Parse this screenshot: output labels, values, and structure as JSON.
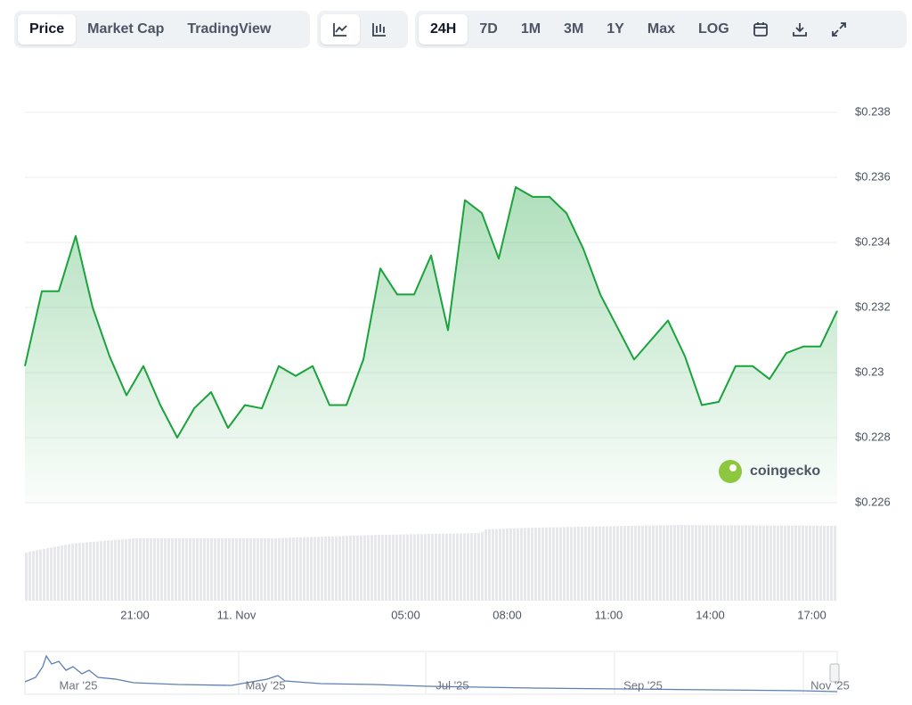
{
  "toolbar": {
    "views": [
      "Price",
      "Market Cap",
      "TradingView"
    ],
    "ranges": [
      "24H",
      "7D",
      "1M",
      "3M",
      "1Y",
      "Max",
      "LOG"
    ]
  },
  "chart_data": {
    "type": "line",
    "color": "#1aa33c",
    "grid": true,
    "x": [
      0,
      0.5,
      1,
      1.5,
      2,
      2.5,
      3,
      3.5,
      4,
      4.5,
      5,
      5.5,
      6,
      6.5,
      7,
      7.5,
      8,
      8.5,
      9,
      9.5,
      10,
      10.5,
      11,
      11.5,
      12,
      12.5,
      13,
      13.5,
      14,
      14.5,
      15,
      15.5,
      16,
      16.5,
      17,
      17.5,
      18,
      18.5,
      19,
      19.5,
      20,
      20.5,
      21,
      21.5,
      22,
      22.5,
      23,
      23.5,
      24
    ],
    "values": [
      0.2302,
      0.2325,
      0.2325,
      0.2342,
      0.232,
      0.2305,
      0.2293,
      0.2302,
      0.229,
      0.228,
      0.2289,
      0.2294,
      0.2283,
      0.229,
      0.2289,
      0.2302,
      0.2299,
      0.2302,
      0.229,
      0.229,
      0.2304,
      0.2332,
      0.2324,
      0.2324,
      0.2336,
      0.2313,
      0.2353,
      0.2349,
      0.2335,
      0.2357,
      0.2354,
      0.2354,
      0.2349,
      0.2338,
      0.2324,
      0.2314,
      0.2304,
      0.231,
      0.2316,
      0.2305,
      0.229,
      0.2291,
      0.2302,
      0.2302,
      0.2298,
      0.2306,
      0.2308,
      0.2308,
      0.2319
    ],
    "xlim": [
      0,
      24
    ],
    "xticks": [
      {
        "value": 3.25,
        "label": "21:00"
      },
      {
        "value": 6.25,
        "label": "11. Nov"
      },
      {
        "value": 11.25,
        "label": "05:00"
      },
      {
        "value": 14.25,
        "label": "08:00"
      },
      {
        "value": 17.25,
        "label": "11:00"
      },
      {
        "value": 20.25,
        "label": "14:00"
      },
      {
        "value": 23.25,
        "label": "17:00"
      }
    ],
    "ylim": [
      0.226,
      0.239
    ],
    "yticks": [
      {
        "value": 0.226,
        "label": "$0.226"
      },
      {
        "value": 0.228,
        "label": "$0.228"
      },
      {
        "value": 0.23,
        "label": "$0.23"
      },
      {
        "value": 0.232,
        "label": "$0.232"
      },
      {
        "value": 0.234,
        "label": "$0.234"
      },
      {
        "value": 0.236,
        "label": "$0.236"
      },
      {
        "value": 0.238,
        "label": "$0.238"
      }
    ],
    "watermark": "coingecko",
    "navigator_labels": [
      "Mar '25",
      "May '25",
      "Jul '25",
      "Sep '25",
      "Nov '25"
    ]
  }
}
